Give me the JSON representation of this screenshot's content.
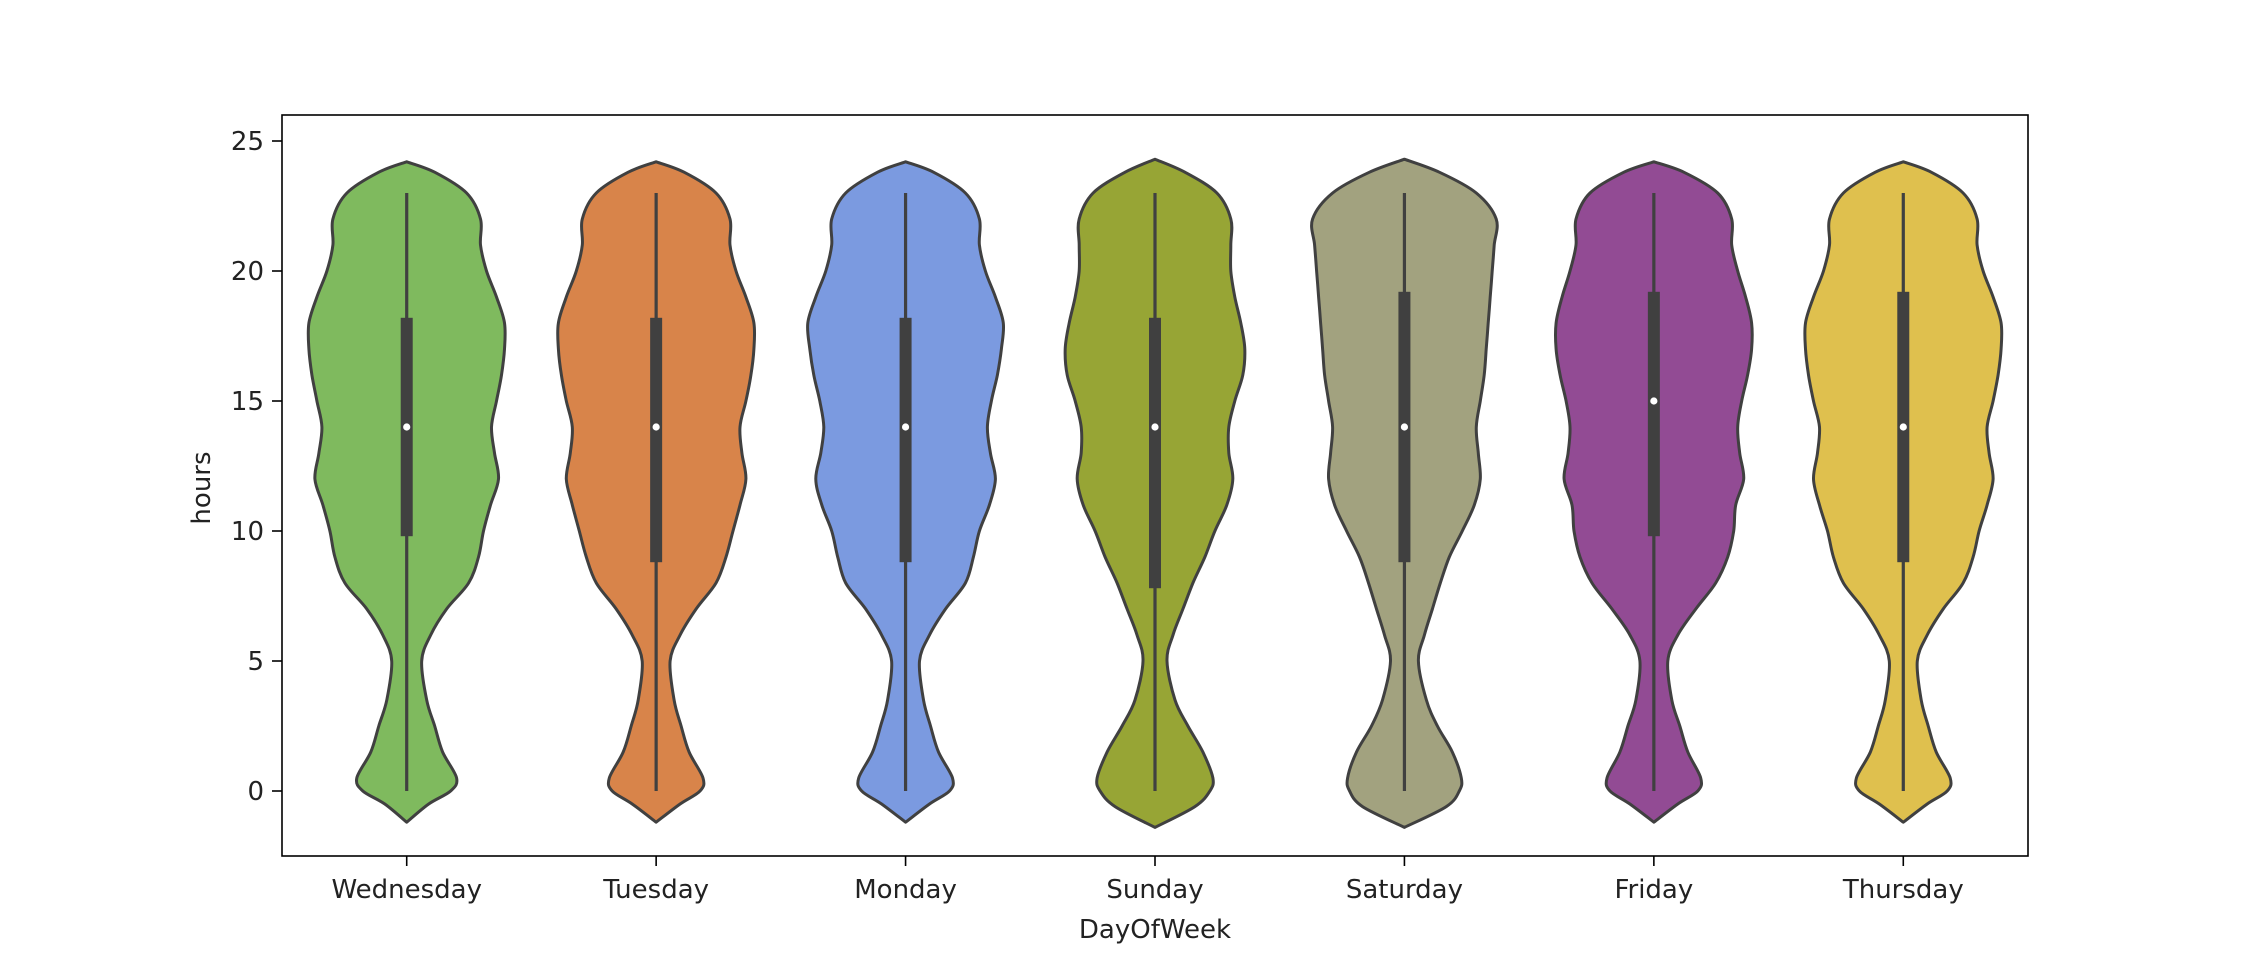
{
  "chart_data": {
    "type": "violin",
    "title": "",
    "xlabel": "DayOfWeek",
    "ylabel": "hours",
    "ylim": [
      -2.5,
      26
    ],
    "yticks": [
      0,
      5,
      10,
      15,
      20,
      25
    ],
    "grid": false,
    "legend": "none",
    "categories": [
      "Wednesday",
      "Tuesday",
      "Monday",
      "Sunday",
      "Saturday",
      "Friday",
      "Thursday"
    ],
    "colors": [
      "#7fba5e",
      "#d8844a",
      "#7b9ae0",
      "#97a535",
      "#a2a27f",
      "#924b94",
      "#dfc04e"
    ],
    "outline_color": "#404040",
    "series": [
      {
        "category": "Wednesday",
        "min": 0,
        "q1": 9.8,
        "median": 14,
        "q3": 18.2,
        "max": 23,
        "density": [
          [
            -1.2,
            0
          ],
          [
            -0.5,
            0.22
          ],
          [
            0,
            0.44
          ],
          [
            0.5,
            0.5
          ],
          [
            1.5,
            0.36
          ],
          [
            2.5,
            0.28
          ],
          [
            3.5,
            0.2
          ],
          [
            5,
            0.15
          ],
          [
            6,
            0.24
          ],
          [
            7,
            0.4
          ],
          [
            8,
            0.62
          ],
          [
            9,
            0.72
          ],
          [
            10,
            0.77
          ],
          [
            11,
            0.84
          ],
          [
            12,
            0.92
          ],
          [
            13,
            0.88
          ],
          [
            14,
            0.85
          ],
          [
            15,
            0.9
          ],
          [
            16,
            0.95
          ],
          [
            17,
            0.98
          ],
          [
            18,
            0.98
          ],
          [
            19,
            0.9
          ],
          [
            20,
            0.8
          ],
          [
            21,
            0.74
          ],
          [
            22,
            0.74
          ],
          [
            23,
            0.6
          ],
          [
            23.8,
            0.28
          ],
          [
            24.2,
            0
          ]
        ]
      },
      {
        "category": "Tuesday",
        "min": 0,
        "q1": 8.8,
        "median": 14,
        "q3": 18.2,
        "max": 23,
        "density": [
          [
            -1.2,
            0
          ],
          [
            -0.5,
            0.24
          ],
          [
            0,
            0.44
          ],
          [
            0.5,
            0.47
          ],
          [
            1.5,
            0.33
          ],
          [
            2.5,
            0.25
          ],
          [
            3.5,
            0.18
          ],
          [
            5,
            0.14
          ],
          [
            6,
            0.24
          ],
          [
            7,
            0.4
          ],
          [
            8,
            0.6
          ],
          [
            9,
            0.7
          ],
          [
            10,
            0.77
          ],
          [
            11,
            0.84
          ],
          [
            12,
            0.9
          ],
          [
            13,
            0.86
          ],
          [
            14,
            0.84
          ],
          [
            15,
            0.9
          ],
          [
            16,
            0.95
          ],
          [
            17,
            0.98
          ],
          [
            18,
            0.98
          ],
          [
            19,
            0.9
          ],
          [
            20,
            0.8
          ],
          [
            21,
            0.74
          ],
          [
            22,
            0.74
          ],
          [
            23,
            0.6
          ],
          [
            23.8,
            0.28
          ],
          [
            24.2,
            0
          ]
        ]
      },
      {
        "category": "Monday",
        "min": 0,
        "q1": 8.8,
        "median": 14,
        "q3": 18.2,
        "max": 23,
        "density": [
          [
            -1.2,
            0
          ],
          [
            -0.5,
            0.24
          ],
          [
            0,
            0.44
          ],
          [
            0.5,
            0.47
          ],
          [
            1.5,
            0.33
          ],
          [
            2.5,
            0.25
          ],
          [
            3.5,
            0.18
          ],
          [
            5,
            0.14
          ],
          [
            6,
            0.24
          ],
          [
            7,
            0.4
          ],
          [
            8,
            0.6
          ],
          [
            9,
            0.68
          ],
          [
            10,
            0.74
          ],
          [
            11,
            0.84
          ],
          [
            12,
            0.9
          ],
          [
            13,
            0.85
          ],
          [
            14,
            0.82
          ],
          [
            15,
            0.86
          ],
          [
            16,
            0.92
          ],
          [
            17,
            0.96
          ],
          [
            18,
            0.98
          ],
          [
            19,
            0.9
          ],
          [
            20,
            0.8
          ],
          [
            21,
            0.74
          ],
          [
            22,
            0.74
          ],
          [
            23,
            0.6
          ],
          [
            23.8,
            0.28
          ],
          [
            24.2,
            0
          ]
        ]
      },
      {
        "category": "Sunday",
        "min": 0,
        "q1": 7.8,
        "median": 14,
        "q3": 18.2,
        "max": 23,
        "density": [
          [
            -1.4,
            0
          ],
          [
            -0.6,
            0.4
          ],
          [
            0,
            0.55
          ],
          [
            0.5,
            0.58
          ],
          [
            1.5,
            0.48
          ],
          [
            2.5,
            0.33
          ],
          [
            3.5,
            0.2
          ],
          [
            5,
            0.12
          ],
          [
            6,
            0.18
          ],
          [
            7,
            0.28
          ],
          [
            8,
            0.38
          ],
          [
            9,
            0.5
          ],
          [
            10,
            0.6
          ],
          [
            11,
            0.72
          ],
          [
            12,
            0.78
          ],
          [
            13,
            0.74
          ],
          [
            14,
            0.74
          ],
          [
            15,
            0.8
          ],
          [
            16,
            0.88
          ],
          [
            17,
            0.9
          ],
          [
            18,
            0.86
          ],
          [
            19,
            0.8
          ],
          [
            20,
            0.76
          ],
          [
            21,
            0.76
          ],
          [
            22,
            0.76
          ],
          [
            23,
            0.62
          ],
          [
            23.8,
            0.3
          ],
          [
            24.3,
            0
          ]
        ]
      },
      {
        "category": "Saturday",
        "min": 0,
        "q1": 8.8,
        "median": 14,
        "q3": 19.2,
        "max": 23,
        "density": [
          [
            -1.4,
            0
          ],
          [
            -0.6,
            0.42
          ],
          [
            0,
            0.55
          ],
          [
            0.5,
            0.57
          ],
          [
            1.5,
            0.48
          ],
          [
            2.5,
            0.33
          ],
          [
            3.5,
            0.22
          ],
          [
            5,
            0.14
          ],
          [
            6,
            0.2
          ],
          [
            7,
            0.28
          ],
          [
            8,
            0.36
          ],
          [
            9,
            0.45
          ],
          [
            10,
            0.58
          ],
          [
            11,
            0.7
          ],
          [
            12,
            0.76
          ],
          [
            13,
            0.74
          ],
          [
            14,
            0.72
          ],
          [
            15,
            0.76
          ],
          [
            16,
            0.8
          ],
          [
            17,
            0.82
          ],
          [
            18,
            0.84
          ],
          [
            19,
            0.86
          ],
          [
            20,
            0.88
          ],
          [
            21,
            0.9
          ],
          [
            22,
            0.92
          ],
          [
            23,
            0.72
          ],
          [
            23.8,
            0.35
          ],
          [
            24.3,
            0
          ]
        ]
      },
      {
        "category": "Friday",
        "min": 0,
        "q1": 9.8,
        "median": 15,
        "q3": 19.2,
        "max": 23,
        "density": [
          [
            -1.2,
            0
          ],
          [
            -0.5,
            0.24
          ],
          [
            0,
            0.44
          ],
          [
            0.5,
            0.47
          ],
          [
            1.5,
            0.34
          ],
          [
            2.5,
            0.26
          ],
          [
            3.5,
            0.18
          ],
          [
            5,
            0.14
          ],
          [
            6,
            0.24
          ],
          [
            7,
            0.42
          ],
          [
            8,
            0.62
          ],
          [
            9,
            0.74
          ],
          [
            10,
            0.8
          ],
          [
            11,
            0.82
          ],
          [
            12,
            0.9
          ],
          [
            13,
            0.86
          ],
          [
            14,
            0.84
          ],
          [
            15,
            0.88
          ],
          [
            16,
            0.94
          ],
          [
            17,
            0.98
          ],
          [
            18,
            0.98
          ],
          [
            19,
            0.92
          ],
          [
            20,
            0.84
          ],
          [
            21,
            0.78
          ],
          [
            22,
            0.78
          ],
          [
            23,
            0.64
          ],
          [
            23.8,
            0.3
          ],
          [
            24.2,
            0
          ]
        ]
      },
      {
        "category": "Thursday",
        "min": 0,
        "q1": 8.8,
        "median": 14,
        "q3": 19.2,
        "max": 23,
        "density": [
          [
            -1.2,
            0
          ],
          [
            -0.5,
            0.24
          ],
          [
            0,
            0.44
          ],
          [
            0.5,
            0.47
          ],
          [
            1.5,
            0.33
          ],
          [
            2.5,
            0.25
          ],
          [
            3.5,
            0.18
          ],
          [
            5,
            0.14
          ],
          [
            6,
            0.24
          ],
          [
            7,
            0.4
          ],
          [
            8,
            0.6
          ],
          [
            9,
            0.7
          ],
          [
            10,
            0.76
          ],
          [
            11,
            0.84
          ],
          [
            12,
            0.9
          ],
          [
            13,
            0.86
          ],
          [
            14,
            0.84
          ],
          [
            15,
            0.9
          ],
          [
            16,
            0.95
          ],
          [
            17,
            0.98
          ],
          [
            18,
            0.98
          ],
          [
            19,
            0.9
          ],
          [
            20,
            0.8
          ],
          [
            21,
            0.74
          ],
          [
            22,
            0.74
          ],
          [
            23,
            0.6
          ],
          [
            23.8,
            0.28
          ],
          [
            24.2,
            0
          ]
        ]
      }
    ]
  }
}
